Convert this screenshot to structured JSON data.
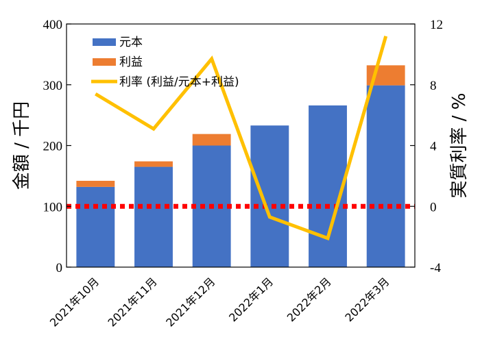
{
  "chart_data": {
    "type": "bar",
    "categories": [
      "2021年10月",
      "2021年11月",
      "2021年12月",
      "2022年1月",
      "2022年2月",
      "2022年3月"
    ],
    "series": [
      {
        "name": "元本",
        "kind": "stacked-bar",
        "axis": "left",
        "color": "#4472C4",
        "values": [
          132,
          165,
          200,
          233,
          266,
          299
        ]
      },
      {
        "name": "利益",
        "kind": "stacked-bar",
        "axis": "left",
        "color": "#ED7D31",
        "values": [
          10,
          9,
          19,
          0,
          0,
          33
        ]
      },
      {
        "name": "利率 (利益/元本+利益)",
        "kind": "line",
        "axis": "right",
        "color": "#FFC000",
        "values": [
          7.4,
          5.1,
          9.7,
          -0.7,
          -2.1,
          11.2
        ]
      }
    ],
    "reference_line": {
      "value": 100,
      "axis": "left",
      "color": "#FF0000",
      "style": "dotted"
    },
    "ylabel": "金額 / 千円",
    "ylabel_right": "実質利率 / %",
    "ylim": [
      0,
      400
    ],
    "ylim_right": [
      -4,
      12
    ],
    "yticks": [
      "0",
      "100",
      "200",
      "300",
      "400"
    ],
    "yticks_right": [
      "-4",
      "0",
      "4",
      "8",
      "12"
    ],
    "legend_position": "top-left",
    "grid": false
  }
}
